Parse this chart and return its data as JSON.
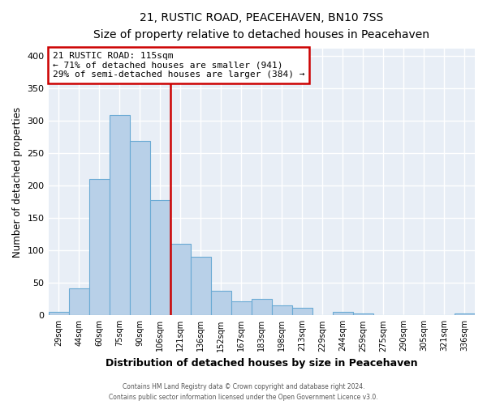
{
  "title": "21, RUSTIC ROAD, PEACEHAVEN, BN10 7SS",
  "subtitle": "Size of property relative to detached houses in Peacehaven",
  "xlabel": "Distribution of detached houses by size in Peacehaven",
  "ylabel": "Number of detached properties",
  "categories": [
    "29sqm",
    "44sqm",
    "60sqm",
    "75sqm",
    "90sqm",
    "106sqm",
    "121sqm",
    "136sqm",
    "152sqm",
    "167sqm",
    "183sqm",
    "198sqm",
    "213sqm",
    "229sqm",
    "244sqm",
    "259sqm",
    "275sqm",
    "290sqm",
    "305sqm",
    "321sqm",
    "336sqm"
  ],
  "values": [
    5,
    42,
    210,
    308,
    268,
    178,
    110,
    90,
    38,
    22,
    25,
    15,
    12,
    0,
    5,
    3,
    1,
    0,
    0,
    0,
    3
  ],
  "bar_color": "#b8d0e8",
  "bar_edge_color": "#6aaad4",
  "vline_color": "#cc0000",
  "annotation_title": "21 RUSTIC ROAD: 115sqm",
  "annotation_line1": "← 71% of detached houses are smaller (941)",
  "annotation_line2": "29% of semi-detached houses are larger (384) →",
  "annotation_box_edge_color": "#cc0000",
  "ylim": [
    0,
    410
  ],
  "yticks": [
    0,
    50,
    100,
    150,
    200,
    250,
    300,
    350,
    400
  ],
  "footer1": "Contains HM Land Registry data © Crown copyright and database right 2024.",
  "footer2": "Contains public sector information licensed under the Open Government Licence v3.0.",
  "fig_bg_color": "#ffffff",
  "plot_bg_color": "#e8eef6",
  "grid_color": "#ffffff"
}
